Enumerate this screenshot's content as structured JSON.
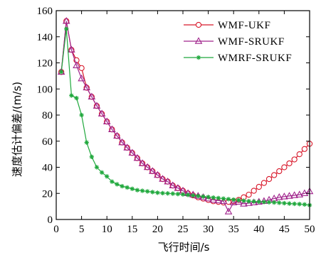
{
  "chart_data": {
    "type": "line",
    "xlabel": "飞行时间/s",
    "ylabel": "速度估计偏差/(m/s)",
    "xlim": [
      0,
      50
    ],
    "ylim": [
      0,
      160
    ],
    "xticks": [
      0,
      5,
      10,
      15,
      20,
      25,
      30,
      35,
      40,
      45,
      50
    ],
    "yticks": [
      0,
      20,
      40,
      60,
      80,
      100,
      120,
      140,
      160
    ],
    "grid": false,
    "legend_position": "top-right",
    "series": [
      {
        "name": "WMF-UKF",
        "color": "#d8182a",
        "marker": "circle",
        "x": [
          1,
          2,
          3,
          4,
          5,
          6,
          7,
          8,
          9,
          10,
          11,
          12,
          13,
          14,
          15,
          16,
          17,
          18,
          19,
          20,
          21,
          22,
          23,
          24,
          25,
          26,
          27,
          28,
          29,
          30,
          31,
          32,
          33,
          34,
          35,
          36,
          37,
          38,
          39,
          40,
          41,
          42,
          43,
          44,
          45,
          46,
          47,
          48,
          49,
          50
        ],
        "y": [
          113,
          152,
          130,
          122,
          116,
          101,
          94,
          87,
          81,
          75,
          69,
          64,
          59,
          55,
          51,
          47,
          43,
          40,
          37,
          34,
          31,
          29,
          26,
          24,
          22,
          20,
          18.5,
          17,
          16,
          15,
          14,
          13.5,
          13,
          13.5,
          14,
          15,
          17,
          19,
          22,
          25,
          28,
          31,
          34,
          37,
          40,
          43,
          46,
          50,
          54,
          58
        ]
      },
      {
        "name": "WMF-SRUKF",
        "color": "#a0248c",
        "marker": "triangle",
        "x": [
          1,
          2,
          3,
          4,
          5,
          6,
          7,
          8,
          9,
          10,
          11,
          12,
          13,
          14,
          15,
          16,
          17,
          18,
          19,
          20,
          21,
          22,
          23,
          24,
          25,
          26,
          27,
          28,
          29,
          30,
          31,
          32,
          33,
          34,
          35,
          36,
          37,
          38,
          39,
          40,
          41,
          42,
          43,
          44,
          45,
          46,
          47,
          48,
          49,
          50
        ],
        "y": [
          113,
          152,
          130,
          118,
          108,
          101,
          94,
          87,
          81,
          75,
          69,
          64,
          59,
          55,
          51,
          47,
          43,
          40,
          37,
          34,
          31,
          29,
          26,
          24,
          22,
          20,
          19,
          18,
          17,
          16,
          15,
          14.5,
          14,
          6,
          13,
          13.5,
          12,
          12.5,
          13,
          13.5,
          14,
          15,
          16,
          17,
          17.5,
          18,
          18.5,
          19,
          20,
          21.5
        ]
      },
      {
        "name": "WMRF-SRUKF",
        "color": "#1fa83c",
        "marker": "star",
        "x": [
          1,
          2,
          3,
          4,
          5,
          6,
          7,
          8,
          9,
          10,
          11,
          12,
          13,
          14,
          15,
          16,
          17,
          18,
          19,
          20,
          21,
          22,
          23,
          24,
          25,
          26,
          27,
          28,
          29,
          30,
          31,
          32,
          33,
          34,
          35,
          36,
          37,
          38,
          39,
          40,
          41,
          42,
          43,
          44,
          45,
          46,
          47,
          48,
          49,
          50
        ],
        "y": [
          113,
          146,
          95,
          93,
          80,
          59,
          48,
          40,
          36,
          33,
          29,
          27,
          25.5,
          24.5,
          23.5,
          22.5,
          22,
          21.5,
          21,
          20.5,
          20.2,
          20,
          19.8,
          19.5,
          19.2,
          18.8,
          18.4,
          18,
          17.6,
          17.2,
          16.8,
          16.4,
          16,
          15.6,
          15.2,
          14.8,
          14.4,
          14,
          13.8,
          13.6,
          13.4,
          13.2,
          13,
          12.8,
          12.5,
          12.2,
          12,
          11.8,
          11.5,
          11
        ]
      }
    ]
  }
}
